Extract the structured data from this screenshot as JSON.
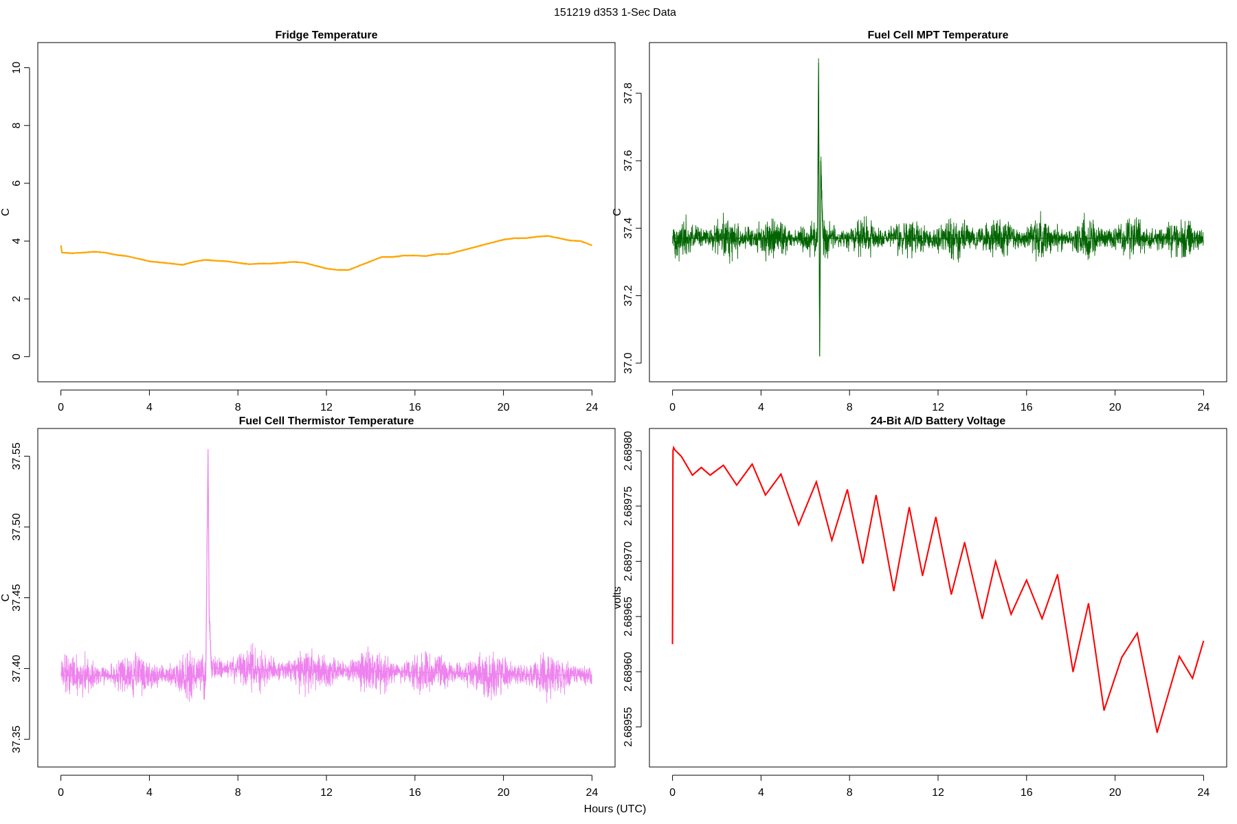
{
  "figure": {
    "title": "151219   d353   1-Sec Data",
    "xlabel": "Hours (UTC)"
  },
  "chart_data": [
    {
      "type": "line",
      "title": "Fridge Temperature",
      "xlabel": "Hours (UTC)",
      "ylabel": "C",
      "color": "#FFA500",
      "xlim": [
        0,
        24
      ],
      "ylim": [
        -0.4,
        10.4
      ],
      "xticks": [
        "0",
        "4",
        "8",
        "12",
        "16",
        "20",
        "24"
      ],
      "yticks": [
        "0",
        "2",
        "4",
        "6",
        "8",
        "10"
      ],
      "noise": 0.02,
      "series": {
        "x": [
          0,
          0.05,
          0.5,
          1.0,
          1.5,
          2.0,
          2.5,
          3.0,
          4.0,
          5.0,
          5.5,
          6.0,
          6.5,
          7.0,
          7.5,
          8.0,
          8.5,
          9.0,
          9.5,
          10.0,
          10.5,
          11.0,
          11.5,
          12.0,
          12.5,
          13.0,
          13.5,
          14.0,
          14.5,
          15.0,
          15.5,
          16.0,
          16.5,
          17.0,
          17.5,
          18.0,
          18.5,
          19.0,
          19.5,
          20.0,
          20.5,
          21.0,
          21.5,
          22.0,
          22.5,
          23.0,
          23.5,
          24.0
        ],
        "y": [
          3.85,
          3.6,
          3.58,
          3.6,
          3.63,
          3.6,
          3.52,
          3.48,
          3.3,
          3.22,
          3.18,
          3.28,
          3.35,
          3.32,
          3.3,
          3.25,
          3.2,
          3.22,
          3.22,
          3.25,
          3.28,
          3.25,
          3.15,
          3.05,
          3.0,
          3.0,
          3.15,
          3.3,
          3.45,
          3.45,
          3.5,
          3.5,
          3.48,
          3.55,
          3.55,
          3.65,
          3.75,
          3.85,
          3.95,
          4.05,
          4.1,
          4.1,
          4.15,
          4.18,
          4.1,
          4.02,
          4.0,
          3.85
        ]
      }
    },
    {
      "type": "line",
      "title": "Fuel Cell MPT Temperature",
      "xlabel": "Hours (UTC)",
      "ylabel": "C",
      "color": "#006400",
      "xlim": [
        0,
        24
      ],
      "ylim": [
        36.985,
        37.91
      ],
      "xticks": [
        "0",
        "4",
        "8",
        "12",
        "16",
        "20",
        "24"
      ],
      "yticks": [
        "37.0",
        "37.2",
        "37.4",
        "37.6",
        "37.8"
      ],
      "noise": 0.08,
      "series": {
        "x": [
          0,
          6.4,
          6.55,
          6.6,
          6.65,
          6.7,
          6.8,
          24
        ],
        "y": [
          37.37,
          37.37,
          37.36,
          37.89,
          37.02,
          37.6,
          37.37,
          37.37
        ]
      }
    },
    {
      "type": "line",
      "title": "Fuel Cell Thermistor Temperature",
      "xlabel": "Hours (UTC)",
      "ylabel": "C",
      "color": "#EE82EE",
      "xlim": [
        0,
        24
      ],
      "ylim": [
        37.34,
        37.56
      ],
      "xticks": [
        "0",
        "4",
        "8",
        "12",
        "16",
        "20",
        "24"
      ],
      "yticks": [
        "37.35",
        "37.40",
        "37.45",
        "37.50",
        "37.55"
      ],
      "noise": 0.022,
      "series": {
        "x": [
          0,
          6.45,
          6.5,
          6.55,
          6.65,
          6.7,
          6.8,
          24
        ],
        "y": [
          37.395,
          37.395,
          37.385,
          37.4,
          37.555,
          37.44,
          37.4,
          37.395
        ]
      }
    },
    {
      "type": "line",
      "title": "24-Bit A/D Battery Voltage",
      "xlabel": "Hours (UTC)",
      "ylabel": "volts",
      "color": "#FF0000",
      "xlim": [
        0,
        24
      ],
      "ylim": [
        2.689526,
        2.689808
      ],
      "xticks": [
        "0",
        "4",
        "8",
        "12",
        "16",
        "20",
        "24"
      ],
      "yticks": [
        "2.68955",
        "2.68960",
        "2.68965",
        "2.68970",
        "2.68975",
        "2.68980"
      ],
      "noise": 4e-07,
      "series": {
        "x": [
          0,
          0.02,
          0.05,
          0.1,
          0.4,
          0.9,
          1.3,
          1.7,
          2.3,
          2.9,
          3.6,
          4.2,
          4.9,
          5.7,
          6.5,
          7.2,
          7.9,
          8.6,
          9.2,
          10.0,
          10.7,
          11.3,
          11.9,
          12.6,
          13.2,
          14.0,
          14.6,
          15.3,
          16.0,
          16.7,
          17.4,
          18.1,
          18.8,
          19.5,
          20.3,
          21.0,
          21.9,
          22.9,
          23.5,
          24.0
        ],
        "y": [
          2.689625,
          2.6898,
          2.689803,
          2.689801,
          2.689795,
          2.689778,
          2.689785,
          2.689778,
          2.689787,
          2.689769,
          2.689788,
          2.68976,
          2.689779,
          2.689733,
          2.689772,
          2.689719,
          2.689765,
          2.689698,
          2.68976,
          2.689673,
          2.689749,
          2.689687,
          2.68974,
          2.68967,
          2.689717,
          2.689648,
          2.6897,
          2.689652,
          2.689683,
          2.689648,
          2.689688,
          2.6896,
          2.689662,
          2.689565,
          2.689613,
          2.689635,
          2.689545,
          2.689614,
          2.689594,
          2.689628
        ]
      }
    }
  ]
}
